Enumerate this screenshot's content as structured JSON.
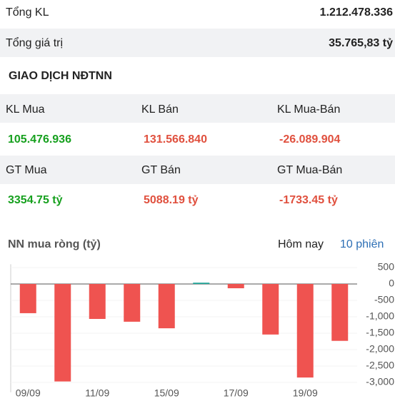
{
  "summary": [
    {
      "label": "Tổng KL",
      "value": "1.212.478.336"
    },
    {
      "label": "Tổng giá trị",
      "value": "35.765,83 tỷ"
    }
  ],
  "section_title": "GIAO DỊCH NĐTNN",
  "table": {
    "rows": [
      [
        "KL Mua",
        "KL Bán",
        "KL Mua-Bán"
      ],
      [
        "105.476.936",
        "131.566.840",
        "-26.089.904"
      ],
      [
        "GT Mua",
        "GT Bán",
        "GT Mua-Bán"
      ],
      [
        "3354.75 tỷ",
        "5088.19 tỷ",
        "-1733.45 tỷ"
      ]
    ]
  },
  "tabs": [
    "Hôm nay",
    "10 phiên"
  ],
  "chart_data": {
    "type": "bar",
    "title": "NN mua ròng (tỷ)",
    "categories": [
      "09/09",
      null,
      "11/09",
      null,
      "15/09",
      null,
      "17/09",
      null,
      "19/09",
      null
    ],
    "values": [
      -890,
      -2970,
      -1065,
      -1150,
      -1350,
      40,
      -130,
      -1540,
      -2850,
      -1733
    ],
    "positive_color": "#26a69a",
    "negative_color": "#ef5350",
    "ylim": [
      -3300,
      600
    ],
    "yticks": [
      500,
      0,
      -500,
      {
        "value": -1000,
        "label": "-1,000"
      },
      {
        "value": -1500,
        "label": "-1,500"
      },
      {
        "value": -2000,
        "label": "-2,000"
      },
      {
        "value": -2500,
        "label": "-2,500"
      },
      {
        "value": -3000,
        "label": "-3,000"
      }
    ]
  }
}
